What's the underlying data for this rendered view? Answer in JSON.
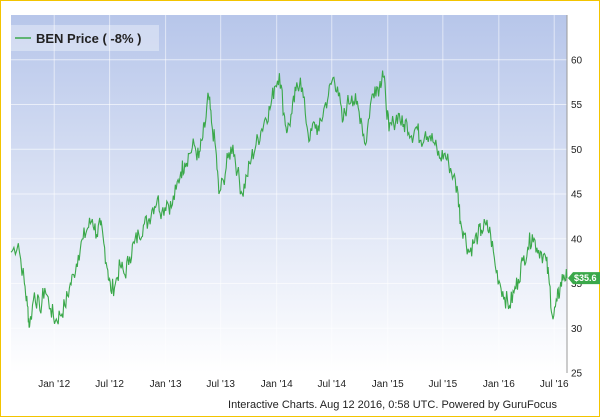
{
  "chart_data": {
    "type": "line",
    "series": [
      {
        "name": "BEN Price ( -8% )",
        "color": "#3aa84a",
        "points": [
          [
            "2011-08-12",
            38.5
          ],
          [
            "2011-09-05",
            39.5
          ],
          [
            "2011-09-25",
            35.0
          ],
          [
            "2011-10-05",
            32.5
          ],
          [
            "2011-10-12",
            30.2
          ],
          [
            "2011-10-28",
            34.0
          ],
          [
            "2011-11-15",
            32.0
          ],
          [
            "2011-12-01",
            34.5
          ],
          [
            "2011-12-20",
            32.2
          ],
          [
            "2012-01-05",
            30.8
          ],
          [
            "2012-01-20",
            31.5
          ],
          [
            "2012-02-05",
            32.5
          ],
          [
            "2012-02-20",
            34.5
          ],
          [
            "2012-03-05",
            36.0
          ],
          [
            "2012-03-20",
            38.2
          ],
          [
            "2012-04-05",
            40.0
          ],
          [
            "2012-04-20",
            41.2
          ],
          [
            "2012-05-05",
            42.2
          ],
          [
            "2012-05-20",
            40.5
          ],
          [
            "2012-06-01",
            41.5
          ],
          [
            "2012-06-12",
            39.5
          ],
          [
            "2012-06-25",
            36.5
          ],
          [
            "2012-07-05",
            34.2
          ],
          [
            "2012-07-20",
            35.0
          ],
          [
            "2012-08-05",
            37.0
          ],
          [
            "2012-08-20",
            36.0
          ],
          [
            "2012-09-05",
            38.0
          ],
          [
            "2012-09-20",
            39.5
          ],
          [
            "2012-10-05",
            40.5
          ],
          [
            "2012-10-20",
            41.5
          ],
          [
            "2012-11-05",
            42.0
          ],
          [
            "2012-11-20",
            43.5
          ],
          [
            "2012-12-05",
            44.5
          ],
          [
            "2012-12-20",
            43.0
          ],
          [
            "2013-01-05",
            44.2
          ],
          [
            "2013-01-20",
            43.5
          ],
          [
            "2013-02-05",
            45.5
          ],
          [
            "2013-02-20",
            47.5
          ],
          [
            "2013-03-05",
            48.5
          ],
          [
            "2013-03-20",
            49.5
          ],
          [
            "2013-04-05",
            50.5
          ],
          [
            "2013-04-20",
            49.0
          ],
          [
            "2013-05-01",
            51.0
          ],
          [
            "2013-05-12",
            53.0
          ],
          [
            "2013-05-22",
            56.0
          ],
          [
            "2013-06-01",
            53.0
          ],
          [
            "2013-06-15",
            50.0
          ],
          [
            "2013-06-25",
            45.0
          ],
          [
            "2013-07-10",
            46.5
          ],
          [
            "2013-07-25",
            49.0
          ],
          [
            "2013-08-10",
            50.5
          ],
          [
            "2013-08-25",
            47.5
          ],
          [
            "2013-09-10",
            45.0
          ],
          [
            "2013-09-25",
            47.0
          ],
          [
            "2013-10-10",
            49.0
          ],
          [
            "2013-10-25",
            50.5
          ],
          [
            "2013-11-10",
            52.0
          ],
          [
            "2013-11-25",
            53.5
          ],
          [
            "2013-12-10",
            54.5
          ],
          [
            "2013-12-25",
            57.0
          ],
          [
            "2014-01-10",
            58.5
          ],
          [
            "2014-01-25",
            54.0
          ],
          [
            "2014-02-05",
            52.0
          ],
          [
            "2014-02-20",
            54.0
          ],
          [
            "2014-03-05",
            56.5
          ],
          [
            "2014-03-20",
            58.0
          ],
          [
            "2014-04-05",
            54.0
          ],
          [
            "2014-04-20",
            51.0
          ],
          [
            "2014-05-05",
            53.0
          ],
          [
            "2014-05-20",
            52.0
          ],
          [
            "2014-06-05",
            54.5
          ],
          [
            "2014-06-20",
            56.0
          ],
          [
            "2014-07-05",
            58.0
          ],
          [
            "2014-07-20",
            57.0
          ],
          [
            "2014-08-05",
            53.0
          ],
          [
            "2014-08-20",
            55.0
          ],
          [
            "2014-09-05",
            56.0
          ],
          [
            "2014-09-20",
            55.0
          ],
          [
            "2014-10-05",
            53.5
          ],
          [
            "2014-10-20",
            50.5
          ],
          [
            "2014-11-05",
            55.0
          ],
          [
            "2014-11-20",
            57.0
          ],
          [
            "2014-12-05",
            57.0
          ],
          [
            "2014-12-15",
            58.8
          ],
          [
            "2014-12-25",
            56.0
          ],
          [
            "2015-01-05",
            52.0
          ],
          [
            "2015-01-20",
            53.0
          ],
          [
            "2015-02-05",
            54.0
          ],
          [
            "2015-02-20",
            52.5
          ],
          [
            "2015-03-05",
            53.0
          ],
          [
            "2015-03-20",
            51.5
          ],
          [
            "2015-04-05",
            52.5
          ],
          [
            "2015-04-20",
            51.0
          ],
          [
            "2015-05-05",
            52.0
          ],
          [
            "2015-05-20",
            51.5
          ],
          [
            "2015-06-05",
            50.5
          ],
          [
            "2015-06-20",
            49.0
          ],
          [
            "2015-07-05",
            49.5
          ],
          [
            "2015-07-20",
            48.5
          ],
          [
            "2015-08-05",
            47.0
          ],
          [
            "2015-08-20",
            45.0
          ],
          [
            "2015-08-28",
            42.0
          ],
          [
            "2015-09-10",
            40.5
          ],
          [
            "2015-09-25",
            38.5
          ],
          [
            "2015-10-10",
            39.5
          ],
          [
            "2015-10-25",
            40.5
          ],
          [
            "2015-11-05",
            41.0
          ],
          [
            "2015-11-20",
            41.5
          ],
          [
            "2015-12-05",
            40.5
          ],
          [
            "2015-12-20",
            37.0
          ],
          [
            "2016-01-05",
            35.0
          ],
          [
            "2016-01-20",
            33.5
          ],
          [
            "2016-02-05",
            32.5
          ],
          [
            "2016-02-20",
            34.0
          ],
          [
            "2016-03-05",
            35.5
          ],
          [
            "2016-03-20",
            37.5
          ],
          [
            "2016-04-05",
            39.0
          ],
          [
            "2016-04-20",
            40.5
          ],
          [
            "2016-05-05",
            39.0
          ],
          [
            "2016-05-20",
            38.5
          ],
          [
            "2016-06-05",
            37.5
          ],
          [
            "2016-06-15",
            35.0
          ],
          [
            "2016-06-27",
            31.0
          ],
          [
            "2016-07-10",
            33.0
          ],
          [
            "2016-07-20",
            34.5
          ],
          [
            "2016-08-01",
            36.0
          ],
          [
            "2016-08-12",
            35.6
          ]
        ]
      }
    ],
    "x_type": "date",
    "xlim": [
      "2011-08-12",
      "2016-08-12"
    ],
    "ylim": [
      25,
      65
    ],
    "y_ticks": [
      25,
      30,
      35,
      40,
      45,
      50,
      55,
      60
    ],
    "x_ticks": [
      {
        "date": "2012-01-01",
        "label": "Jan '12"
      },
      {
        "date": "2012-07-01",
        "label": "Jul '12"
      },
      {
        "date": "2013-01-01",
        "label": "Jan '13"
      },
      {
        "date": "2013-07-01",
        "label": "Jul '13"
      },
      {
        "date": "2014-01-01",
        "label": "Jan '14"
      },
      {
        "date": "2014-07-01",
        "label": "Jul '14"
      },
      {
        "date": "2015-01-01",
        "label": "Jan '15"
      },
      {
        "date": "2015-07-01",
        "label": "Jul '15"
      },
      {
        "date": "2016-01-01",
        "label": "Jan '16"
      },
      {
        "date": "2016-07-01",
        "label": "Jul '16"
      }
    ],
    "y_axis_side": "right",
    "grid": true,
    "background": "gradient-blue",
    "legend_position": "top-left",
    "last_value_label": "$35.6",
    "last_value": 35.6,
    "footer": "Interactive Charts. Aug 12 2016, 0:58 UTC. Powered by GuruFocus"
  },
  "legend": {
    "label": "BEN Price ( -8% )"
  },
  "footer": {
    "text": "Interactive Charts. Aug 12 2016, 0:58 UTC. Powered by GuruFocus"
  },
  "colors": {
    "line": "#3aa84a",
    "border": "#f3c400",
    "plot_top": "#b7c6ea",
    "plot_bottom": "#ffffff"
  }
}
